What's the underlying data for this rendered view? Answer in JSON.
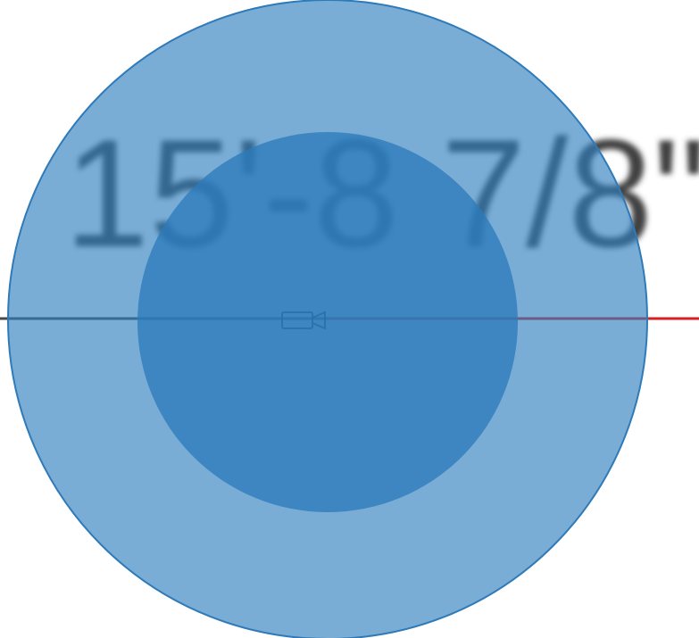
{
  "dimension_label": "15'-8 7/8\""
}
